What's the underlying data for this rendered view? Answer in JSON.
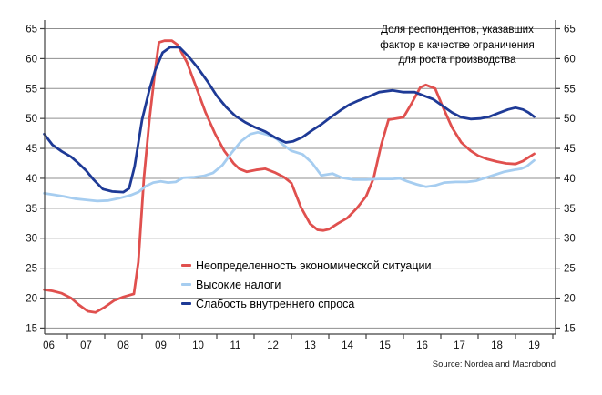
{
  "chart_data": {
    "type": "line",
    "annotation_lines": [
      "Доля респондентов, указавших",
      "фактор в качестве ограничения",
      "для роста производства"
    ],
    "source": "Source: Nordea and Macrobond",
    "grid": true,
    "legend_position": "inside-bottom-left",
    "y_axis": {
      "ticks": [
        15,
        20,
        25,
        30,
        35,
        40,
        45,
        50,
        55,
        60,
        65
      ],
      "ylim": [
        14,
        66.5
      ],
      "sides": [
        "left",
        "right"
      ]
    },
    "x_axis": {
      "tick_labels": [
        "06",
        "07",
        "08",
        "09",
        "10",
        "11",
        "12",
        "13",
        "14",
        "15",
        "16",
        "17",
        "18",
        "19"
      ],
      "first_year": 2006,
      "xlim": [
        2006.37,
        2020.07
      ]
    },
    "series": [
      {
        "name": "Неопределенность экономической ситуации",
        "color": "#e0504e",
        "points": [
          [
            2006.38,
            21.4
          ],
          [
            2006.6,
            21.2
          ],
          [
            2006.85,
            20.8
          ],
          [
            2007.1,
            20.0
          ],
          [
            2007.3,
            18.9
          ],
          [
            2007.55,
            17.8
          ],
          [
            2007.75,
            17.6
          ],
          [
            2008.0,
            18.5
          ],
          [
            2008.25,
            19.6
          ],
          [
            2008.5,
            20.2
          ],
          [
            2008.78,
            20.7
          ],
          [
            2008.9,
            26.0
          ],
          [
            2009.05,
            40.0
          ],
          [
            2009.2,
            50.0
          ],
          [
            2009.35,
            58.0
          ],
          [
            2009.45,
            62.7
          ],
          [
            2009.6,
            63.0
          ],
          [
            2009.8,
            63.0
          ],
          [
            2009.95,
            62.3
          ],
          [
            2010.2,
            59.4
          ],
          [
            2010.45,
            55.2
          ],
          [
            2010.7,
            51.0
          ],
          [
            2010.95,
            47.5
          ],
          [
            2011.2,
            44.6
          ],
          [
            2011.45,
            42.5
          ],
          [
            2011.6,
            41.6
          ],
          [
            2011.8,
            41.1
          ],
          [
            2012.05,
            41.4
          ],
          [
            2012.3,
            41.6
          ],
          [
            2012.55,
            41.0
          ],
          [
            2012.8,
            40.2
          ],
          [
            2013.0,
            39.2
          ],
          [
            2013.25,
            35.2
          ],
          [
            2013.5,
            32.4
          ],
          [
            2013.7,
            31.4
          ],
          [
            2013.85,
            31.3
          ],
          [
            2014.0,
            31.5
          ],
          [
            2014.25,
            32.5
          ],
          [
            2014.5,
            33.4
          ],
          [
            2014.75,
            35.0
          ],
          [
            2015.0,
            37.0
          ],
          [
            2015.2,
            40.0
          ],
          [
            2015.4,
            45.5
          ],
          [
            2015.6,
            49.8
          ],
          [
            2015.8,
            50.0
          ],
          [
            2016.0,
            50.2
          ],
          [
            2016.2,
            52.3
          ],
          [
            2016.45,
            55.2
          ],
          [
            2016.6,
            55.6
          ],
          [
            2016.85,
            55.0
          ],
          [
            2017.05,
            52.0
          ],
          [
            2017.3,
            48.5
          ],
          [
            2017.55,
            46.0
          ],
          [
            2017.8,
            44.6
          ],
          [
            2018.0,
            43.8
          ],
          [
            2018.25,
            43.2
          ],
          [
            2018.5,
            42.8
          ],
          [
            2018.75,
            42.5
          ],
          [
            2019.0,
            42.4
          ],
          [
            2019.2,
            42.9
          ],
          [
            2019.35,
            43.5
          ],
          [
            2019.5,
            44.1
          ]
        ]
      },
      {
        "name": "Высокие налоги",
        "color": "#a6cdf0",
        "points": [
          [
            2006.38,
            37.5
          ],
          [
            2006.6,
            37.3
          ],
          [
            2006.9,
            37.0
          ],
          [
            2007.2,
            36.6
          ],
          [
            2007.5,
            36.4
          ],
          [
            2007.8,
            36.2
          ],
          [
            2008.1,
            36.3
          ],
          [
            2008.4,
            36.7
          ],
          [
            2008.7,
            37.2
          ],
          [
            2008.9,
            37.7
          ],
          [
            2009.1,
            38.7
          ],
          [
            2009.3,
            39.3
          ],
          [
            2009.5,
            39.5
          ],
          [
            2009.7,
            39.3
          ],
          [
            2009.9,
            39.4
          ],
          [
            2010.1,
            40.1
          ],
          [
            2010.4,
            40.2
          ],
          [
            2010.65,
            40.4
          ],
          [
            2010.9,
            40.9
          ],
          [
            2011.15,
            42.2
          ],
          [
            2011.4,
            44.3
          ],
          [
            2011.65,
            46.2
          ],
          [
            2011.9,
            47.4
          ],
          [
            2012.1,
            47.7
          ],
          [
            2012.35,
            47.3
          ],
          [
            2012.6,
            46.6
          ],
          [
            2012.8,
            45.5
          ],
          [
            2013.0,
            44.6
          ],
          [
            2013.3,
            44.0
          ],
          [
            2013.55,
            42.6
          ],
          [
            2013.8,
            40.5
          ],
          [
            2014.1,
            40.8
          ],
          [
            2014.35,
            40.1
          ],
          [
            2014.65,
            39.8
          ],
          [
            2015.0,
            39.8
          ],
          [
            2015.35,
            39.9
          ],
          [
            2015.7,
            39.9
          ],
          [
            2015.9,
            40.0
          ],
          [
            2016.1,
            39.5
          ],
          [
            2016.35,
            39.0
          ],
          [
            2016.6,
            38.6
          ],
          [
            2016.85,
            38.8
          ],
          [
            2017.1,
            39.3
          ],
          [
            2017.4,
            39.4
          ],
          [
            2017.7,
            39.4
          ],
          [
            2017.95,
            39.6
          ],
          [
            2018.2,
            40.1
          ],
          [
            2018.45,
            40.6
          ],
          [
            2018.7,
            41.1
          ],
          [
            2018.95,
            41.4
          ],
          [
            2019.15,
            41.6
          ],
          [
            2019.3,
            42.0
          ],
          [
            2019.5,
            43.0
          ]
        ]
      },
      {
        "name": "Слабость внутреннего спроса",
        "color": "#1e3a96",
        "points": [
          [
            2006.38,
            47.4
          ],
          [
            2006.6,
            45.6
          ],
          [
            2006.85,
            44.5
          ],
          [
            2007.1,
            43.6
          ],
          [
            2007.3,
            42.5
          ],
          [
            2007.5,
            41.3
          ],
          [
            2007.7,
            39.8
          ],
          [
            2007.95,
            38.2
          ],
          [
            2008.2,
            37.8
          ],
          [
            2008.5,
            37.7
          ],
          [
            2008.65,
            38.3
          ],
          [
            2008.8,
            42.0
          ],
          [
            2009.0,
            49.8
          ],
          [
            2009.2,
            54.9
          ],
          [
            2009.35,
            58.0
          ],
          [
            2009.55,
            61.0
          ],
          [
            2009.75,
            61.9
          ],
          [
            2010.0,
            61.9
          ],
          [
            2010.25,
            60.3
          ],
          [
            2010.5,
            58.4
          ],
          [
            2010.75,
            56.2
          ],
          [
            2011.0,
            53.8
          ],
          [
            2011.25,
            51.9
          ],
          [
            2011.5,
            50.4
          ],
          [
            2011.75,
            49.4
          ],
          [
            2012.0,
            48.6
          ],
          [
            2012.3,
            47.8
          ],
          [
            2012.6,
            46.7
          ],
          [
            2012.85,
            46.0
          ],
          [
            2013.05,
            46.2
          ],
          [
            2013.3,
            46.9
          ],
          [
            2013.55,
            48.0
          ],
          [
            2013.8,
            49.0
          ],
          [
            2014.05,
            50.2
          ],
          [
            2014.3,
            51.3
          ],
          [
            2014.55,
            52.3
          ],
          [
            2014.8,
            53.0
          ],
          [
            2015.05,
            53.6
          ],
          [
            2015.35,
            54.4
          ],
          [
            2015.7,
            54.7
          ],
          [
            2016.0,
            54.4
          ],
          [
            2016.3,
            54.4
          ],
          [
            2016.55,
            53.8
          ],
          [
            2016.8,
            53.2
          ],
          [
            2017.05,
            52.1
          ],
          [
            2017.3,
            51.0
          ],
          [
            2017.55,
            50.2
          ],
          [
            2017.8,
            49.9
          ],
          [
            2018.05,
            50.0
          ],
          [
            2018.3,
            50.3
          ],
          [
            2018.55,
            50.9
          ],
          [
            2018.8,
            51.5
          ],
          [
            2019.0,
            51.8
          ],
          [
            2019.2,
            51.5
          ],
          [
            2019.35,
            51.0
          ],
          [
            2019.5,
            50.3
          ]
        ]
      }
    ],
    "colors": {
      "gridline": "#8f8f8f",
      "axis": "#404040",
      "tick_label": "#141414"
    }
  }
}
